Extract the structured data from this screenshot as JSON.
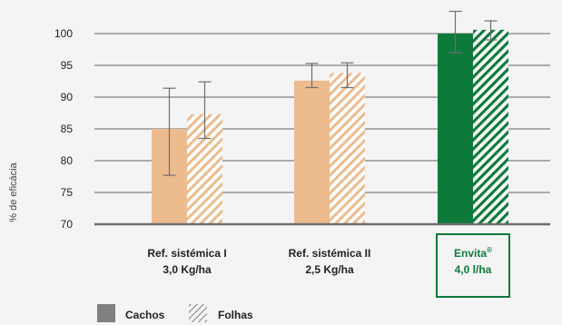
{
  "chart_data": {
    "type": "bar",
    "ylabel": "% de eficácia",
    "ylim": [
      70,
      100
    ],
    "yticks": [
      70,
      75,
      80,
      85,
      90,
      95,
      100
    ],
    "categories": [
      {
        "line1": "Ref. sistémica I",
        "line1_sup": "",
        "line2": "3,0 Kg/ha",
        "highlight": false
      },
      {
        "line1": "Ref. sistémica II",
        "line1_sup": "",
        "line2": "2,5 Kg/ha",
        "highlight": false
      },
      {
        "line1": "Envita",
        "line1_sup": "®",
        "line2": "4,0 l/ha",
        "highlight": true
      }
    ],
    "series": [
      {
        "name": "Cachos",
        "values": [
          85.0,
          92.6,
          100.0
        ],
        "err_low": [
          77.7,
          91.5,
          97.0
        ],
        "err_high": [
          91.4,
          95.3,
          103.5
        ]
      },
      {
        "name": "Folhas",
        "values": [
          87.3,
          93.8,
          100.6
        ],
        "err_low": [
          83.5,
          91.5,
          99.0
        ],
        "err_high": [
          92.4,
          95.4,
          102.0
        ]
      }
    ],
    "colors": {
      "ref_fill": "#ecbb8e",
      "highlight_fill": "#0e7a3a",
      "legend_solid": "#808080",
      "grid": "#333333",
      "axis": "#6e6e6e"
    },
    "legend": {
      "placement": "bottom-left"
    },
    "grid": true
  }
}
